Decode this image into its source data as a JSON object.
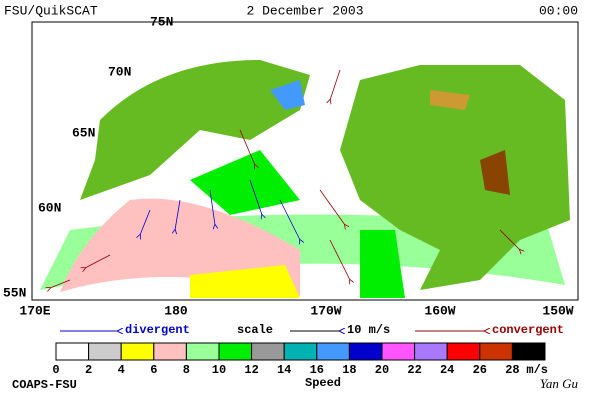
{
  "header": {
    "title": "FSU/QuikSCAT",
    "date": "2 December 2003",
    "time": "00:00"
  },
  "map": {
    "lat_labels": [
      "75N",
      "70N",
      "65N",
      "60N",
      "55N"
    ],
    "lon_labels": [
      "170E",
      "180",
      "170W",
      "160W",
      "150W"
    ]
  },
  "legend": {
    "divergent": "divergent",
    "scale": "scale",
    "scale_value": "10 m/s",
    "convergent": "convergent"
  },
  "colorbar": {
    "colors": [
      "#ffffff",
      "#cccccc",
      "#ffff00",
      "#ffc0c0",
      "#99ff99",
      "#00ee00",
      "#999999",
      "#00b3b3",
      "#4499ff",
      "#0000cc",
      "#ff55ff",
      "#aa77ff",
      "#ff0000",
      "#cc3300",
      "#000000"
    ],
    "ticks": [
      0,
      2,
      4,
      6,
      8,
      10,
      12,
      14,
      16,
      18,
      20,
      22,
      24,
      26,
      28
    ],
    "unit": "m/s",
    "label": "Speed"
  },
  "footer": {
    "left": "COAPS-FSU",
    "right": "Yan Gu"
  }
}
